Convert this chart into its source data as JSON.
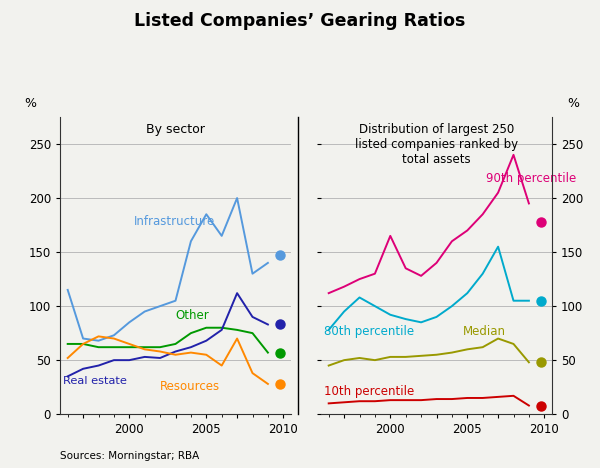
{
  "title": "Listed Companies’ Gearing Ratios",
  "left_subtitle": "By sector",
  "right_subtitle": "Distribution of largest 250\nlisted companies ranked by\ntotal assets",
  "ylabel_left": "%",
  "ylabel_right": "%",
  "source": "Sources: Morningstar; RBA",
  "ylim": [
    0,
    275
  ],
  "yticks": [
    0,
    50,
    100,
    150,
    200,
    250
  ],
  "left_years": [
    1996,
    1997,
    1998,
    1999,
    2000,
    2001,
    2002,
    2003,
    2004,
    2005,
    2006,
    2007,
    2008,
    2009
  ],
  "infrastructure": [
    115,
    70,
    68,
    73,
    85,
    95,
    100,
    105,
    160,
    185,
    165,
    200,
    130,
    140
  ],
  "other": [
    65,
    65,
    62,
    62,
    62,
    62,
    62,
    65,
    75,
    80,
    80,
    78,
    75,
    57
  ],
  "real_estate": [
    35,
    42,
    45,
    50,
    50,
    53,
    52,
    58,
    62,
    68,
    78,
    112,
    90,
    83
  ],
  "resources": [
    52,
    65,
    72,
    70,
    65,
    60,
    58,
    55,
    57,
    55,
    45,
    70,
    38,
    28
  ],
  "infra_dot": 147,
  "other_dot": 57,
  "real_estate_dot": 83,
  "resources_dot": 28,
  "right_years": [
    1996,
    1997,
    1998,
    1999,
    2000,
    2001,
    2002,
    2003,
    2004,
    2005,
    2006,
    2007,
    2008,
    2009
  ],
  "p90": [
    112,
    118,
    125,
    130,
    165,
    135,
    128,
    140,
    160,
    170,
    185,
    205,
    240,
    195
  ],
  "p80": [
    78,
    95,
    108,
    100,
    92,
    88,
    85,
    90,
    100,
    112,
    130,
    155,
    105,
    105
  ],
  "median": [
    45,
    50,
    52,
    50,
    53,
    53,
    54,
    55,
    57,
    60,
    62,
    70,
    65,
    48
  ],
  "p10": [
    10,
    11,
    12,
    12,
    13,
    13,
    13,
    14,
    14,
    15,
    15,
    16,
    17,
    8
  ],
  "p90_dot": 178,
  "p80_dot": 105,
  "median_dot": 48,
  "p10_dot": 8,
  "color_infra": "#5599dd",
  "color_other": "#009900",
  "color_real_estate": "#2222aa",
  "color_resources": "#ff8800",
  "color_p90": "#dd0077",
  "color_p80": "#00aacc",
  "color_median": "#999900",
  "color_p10": "#cc0000",
  "bg_color": "#f2f2ee",
  "grid_color": "#bbbbbb",
  "spine_color": "#333333"
}
